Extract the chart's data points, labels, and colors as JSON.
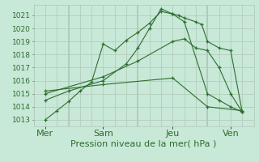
{
  "title": "Pression niveau de la mer( hPa )",
  "bg_color": "#c8e8d8",
  "grid_color": "#b0c8b8",
  "line_color": "#2d6e2d",
  "ylim": [
    1012.5,
    1021.8
  ],
  "yticks": [
    1013,
    1014,
    1015,
    1016,
    1017,
    1018,
    1019,
    1020,
    1021
  ],
  "xlim": [
    0,
    9.5
  ],
  "day_positions": [
    0.5,
    3,
    6,
    8.5
  ],
  "day_labels": [
    "Mer",
    "Sam",
    "Jeu",
    "Ven"
  ],
  "vline_positions": [
    1.5,
    4.5,
    7.5
  ],
  "lines": [
    {
      "x": [
        0.5,
        1.0,
        1.5,
        2.0,
        2.5,
        3.0,
        3.5,
        4.0,
        4.5,
        5.0,
        5.5,
        6.0,
        6.25,
        6.5,
        7.0,
        7.25,
        7.5,
        8.0,
        8.5,
        9.0
      ],
      "y": [
        1013.0,
        1013.7,
        1014.4,
        1015.2,
        1015.9,
        1018.8,
        1018.3,
        1019.1,
        1019.7,
        1020.4,
        1021.3,
        1021.1,
        1021.0,
        1020.8,
        1020.5,
        1020.3,
        1019.0,
        1018.5,
        1018.3,
        1013.6
      ]
    },
    {
      "x": [
        0.5,
        1.5,
        3.0,
        4.0,
        4.5,
        5.0,
        5.5,
        6.0,
        6.5,
        7.5,
        8.0,
        8.5,
        9.0
      ],
      "y": [
        1014.5,
        1015.2,
        1016.0,
        1017.3,
        1018.5,
        1020.0,
        1021.5,
        1021.1,
        1020.5,
        1015.0,
        1014.5,
        1014.0,
        1013.6
      ]
    },
    {
      "x": [
        0.5,
        3.0,
        4.5,
        6.0,
        6.5,
        7.0,
        7.5,
        8.0,
        8.5,
        9.0
      ],
      "y": [
        1015.0,
        1016.3,
        1017.5,
        1019.0,
        1019.2,
        1018.5,
        1018.3,
        1017.0,
        1015.0,
        1013.6
      ]
    },
    {
      "x": [
        0.5,
        3.0,
        6.0,
        7.5,
        9.0
      ],
      "y": [
        1015.2,
        1015.7,
        1016.2,
        1014.0,
        1013.7
      ]
    }
  ],
  "xlabel_fontsize": 8,
  "ylabel_fontsize": 6.5,
  "tick_color": "#2d6e2d"
}
